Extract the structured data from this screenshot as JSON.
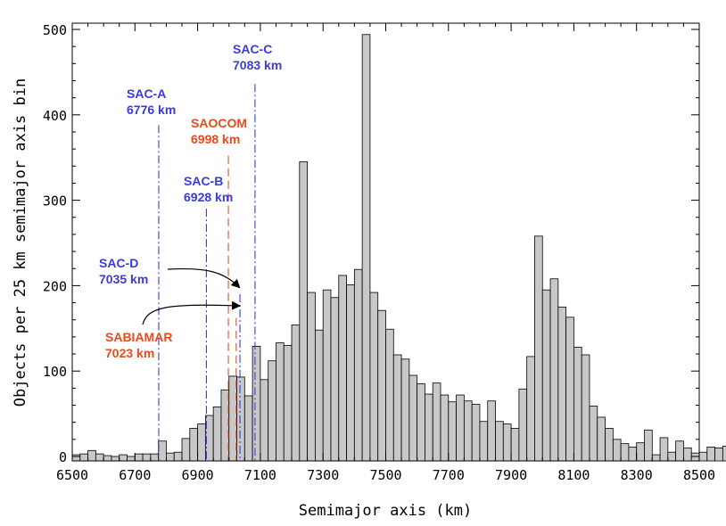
{
  "chart_data": {
    "type": "bar",
    "xlabel": "Semimajor axis (km)",
    "ylabel": "Objects per 25 km semimajor axis bin",
    "xlim": [
      6500,
      8500
    ],
    "ylim": [
      0,
      500
    ],
    "grid": false,
    "bin_width": 25,
    "x_ticks": [
      6500,
      6700,
      6900,
      7100,
      7300,
      7500,
      7700,
      7900,
      8100,
      8300,
      8500
    ],
    "y_ticks": [
      0,
      100,
      200,
      300,
      400,
      500
    ],
    "bins_start": 6500,
    "values": [
      2,
      3,
      7,
      3,
      1,
      0,
      2,
      0,
      3,
      3,
      3,
      18,
      4,
      5,
      21,
      33,
      38,
      48,
      58,
      78,
      94,
      93,
      71,
      129,
      90,
      112,
      133,
      130,
      154,
      345,
      192,
      148,
      195,
      186,
      212,
      201,
      219,
      494,
      192,
      171,
      149,
      119,
      114,
      95,
      85,
      73,
      86,
      72,
      64,
      72,
      65,
      61,
      41,
      65,
      41,
      38,
      33,
      79,
      117,
      258,
      195,
      208,
      175,
      163,
      128,
      119,
      59,
      46,
      33,
      20,
      15,
      11,
      16,
      31,
      2,
      22,
      5,
      18,
      10,
      4,
      5,
      11,
      10,
      12,
      5,
      6,
      10,
      4,
      10,
      7,
      13,
      13,
      2,
      4,
      4,
      6,
      5,
      8,
      8,
      2
    ],
    "fill_color": "#c8c8c8",
    "edge_color": "#000000",
    "annotations": [
      {
        "name": "SAC-A",
        "label": "SAC-A",
        "value_label": "6776 km",
        "x": 6776,
        "top": 388,
        "color": "#3a3ae0",
        "dash": "dashdot"
      },
      {
        "name": "SAC-B",
        "label": "SAC-B",
        "value_label": "6928 km",
        "x": 6928,
        "top": 290,
        "color": "#3a3ae0",
        "dash": "dashdot"
      },
      {
        "name": "SAC-C",
        "label": "SAC-C",
        "value_label": "7083 km",
        "x": 7083,
        "top": 436,
        "color": "#3a3ae0",
        "dash": "dashdot"
      },
      {
        "name": "SAOCOM",
        "label": "SAOCOM",
        "value_label": "6998 km",
        "x": 6998,
        "top": 352,
        "color": "#e84a1a",
        "dash": "dashed"
      },
      {
        "name": "SAC-D",
        "label": "SAC-D",
        "value_label": "7035 km",
        "x": 7035,
        "top": 190,
        "color": "#3a3ae0",
        "dash": "dashdot"
      },
      {
        "name": "SABIAMAR",
        "label": "SABIAMAR",
        "value_label": "7023 km",
        "x": 7023,
        "top": 162,
        "color": "#e84a1a",
        "dash": "dashed"
      }
    ]
  }
}
